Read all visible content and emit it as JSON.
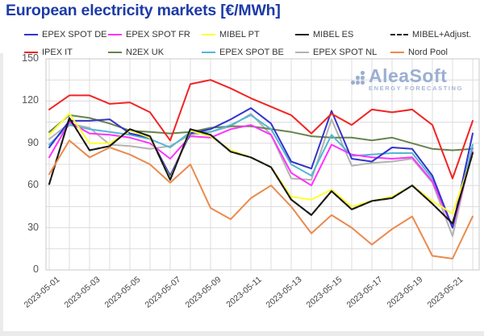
{
  "title": "European electricity markets [€/MWh]",
  "logo": {
    "name": "AleaSoft",
    "tagline": "ENERGY FORECASTING",
    "color": "#93a9ce"
  },
  "axis": {
    "y_tick_labels": [
      "0",
      "30",
      "60",
      "90",
      "120",
      "150"
    ],
    "x_tick_labels": [
      "2023-05-01",
      "2023-05-03",
      "2023-05-05",
      "2023-05-07",
      "2023-05-09",
      "2023-05-11",
      "2023-05-13",
      "2023-05-15",
      "2023-05-17",
      "2023-05-19",
      "2023-05-21"
    ]
  },
  "chart_data": {
    "type": "line",
    "title": "European electricity markets [€/MWh]",
    "xlabel": "",
    "ylabel": "",
    "ylim": [
      0,
      150
    ],
    "y_major_step": 30,
    "y_minor_step": 15,
    "grid": true,
    "legend_position": "top",
    "x": [
      "2023-05-01",
      "2023-05-02",
      "2023-05-03",
      "2023-05-04",
      "2023-05-05",
      "2023-05-06",
      "2023-05-07",
      "2023-05-08",
      "2023-05-09",
      "2023-05-10",
      "2023-05-11",
      "2023-05-12",
      "2023-05-13",
      "2023-05-14",
      "2023-05-15",
      "2023-05-16",
      "2023-05-17",
      "2023-05-18",
      "2023-05-19",
      "2023-05-20",
      "2023-05-21",
      "2023-05-22"
    ],
    "series": [
      {
        "name": "EPEX SPOT DE",
        "color": "#3333cc",
        "dash": false,
        "values": [
          87,
          106,
          106,
          107,
          97,
          94,
          67,
          97,
          100,
          107,
          115,
          104,
          77,
          72,
          113,
          79,
          77,
          87,
          86,
          67,
          30,
          97
        ]
      },
      {
        "name": "EPEX SPOT FR",
        "color": "#ff33ff",
        "dash": false,
        "values": [
          80,
          105,
          97,
          96,
          94,
          90,
          79,
          95,
          94,
          100,
          103,
          96,
          69,
          60,
          89,
          82,
          80,
          79,
          80,
          63,
          30,
          84
        ]
      },
      {
        "name": "MIBEL PT",
        "color": "#ffff33",
        "dash": false,
        "values": [
          96,
          111,
          90,
          90,
          99,
          94,
          65,
          99,
          95,
          85,
          80,
          73,
          52,
          50,
          57,
          45,
          49,
          52,
          60,
          49,
          40,
          82
        ]
      },
      {
        "name": "MIBEL ES",
        "color": "#1a1a1a",
        "dash": false,
        "values": [
          61,
          108,
          85,
          88,
          100,
          95,
          64,
          100,
          96,
          84,
          80,
          73,
          50,
          39,
          56,
          43,
          49,
          51,
          60,
          47,
          33,
          83
        ]
      },
      {
        "name": "MIBEL+Adjust.",
        "color": "#1a1a1a",
        "dash": true,
        "values": [
          61,
          108,
          85,
          88,
          100,
          95,
          64,
          100,
          96,
          84,
          80,
          73,
          50,
          39,
          56,
          43,
          49,
          51,
          60,
          47,
          33,
          83
        ]
      },
      {
        "name": "IPEX IT",
        "color": "#f22424",
        "dash": false,
        "values": [
          114,
          124,
          124,
          118,
          119,
          112,
          92,
          132,
          135,
          129,
          122,
          116,
          110,
          97,
          111,
          103,
          114,
          112,
          114,
          103,
          65,
          106
        ]
      },
      {
        "name": "N2EX UK",
        "color": "#66844c",
        "dash": false,
        "values": [
          98,
          110,
          108,
          104,
          99,
          98,
          97,
          98,
          101,
          102,
          102,
          100,
          98,
          95,
          94,
          94,
          92,
          94,
          90,
          86,
          85,
          86
        ]
      },
      {
        "name": "EPEX SPOT BE",
        "color": "#54b5d6",
        "dash": false,
        "values": [
          89,
          103,
          100,
          98,
          96,
          93,
          87,
          98,
          98,
          103,
          110,
          100,
          75,
          67,
          96,
          81,
          82,
          83,
          83,
          65,
          30,
          89
        ]
      },
      {
        "name": "EPEX SPOT NL",
        "color": "#b3b3b3",
        "dash": false,
        "values": [
          93,
          104,
          101,
          89,
          88,
          86,
          88,
          96,
          98,
          102,
          111,
          96,
          65,
          64,
          107,
          74,
          76,
          77,
          79,
          62,
          24,
          87
        ]
      },
      {
        "name": "Nord Pool",
        "color": "#eb8a4d",
        "dash": false,
        "values": [
          68,
          92,
          80,
          87,
          82,
          75,
          62,
          75,
          44,
          36,
          51,
          60,
          45,
          26,
          39,
          30,
          18,
          29,
          38,
          10,
          8,
          38
        ]
      }
    ],
    "draw_order": [
      8,
      6,
      7,
      1,
      0,
      2,
      3,
      4,
      5,
      9
    ]
  },
  "legend_layout": {
    "column_lefts": [
      30,
      134,
      250,
      366,
      484
    ],
    "row_tops": [
      36,
      58
    ]
  },
  "style": {
    "grid_color": "#dcdcdc",
    "border_color": "#c8c8c8",
    "title_color": "#1d3ba6"
  }
}
